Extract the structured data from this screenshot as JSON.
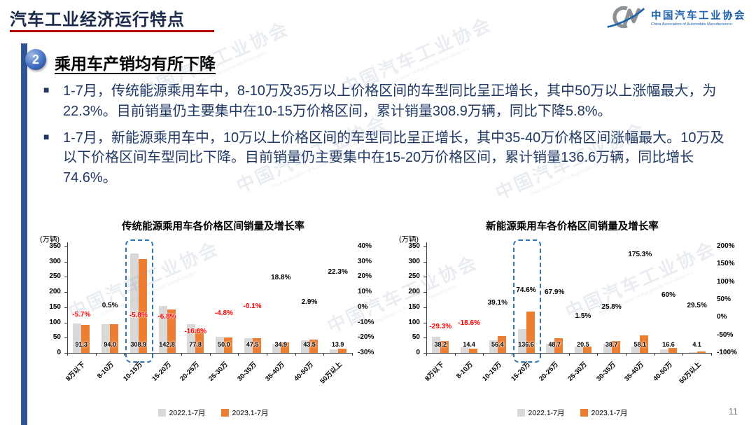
{
  "header": {
    "title": "汽车工业经济运行特点",
    "logo": {
      "org_cn": "中国汽车工业协会",
      "org_en": "China Association of Automobile Manufacturers"
    }
  },
  "section": {
    "number": "2",
    "heading": "乘用车产销均有所下降"
  },
  "bullets": [
    "1-7月，传统能源乘用车中，8-10万及35万以上价格区间的车型同比呈正增长，其中50万以上涨幅最大，为22.3%。目前销量仍主要集中在10-15万价格区间，累计销量308.9万辆，同比下降5.8%。",
    "1-7月，新能源乘用车中，10万以上价格区间的车型同比呈正增长，其中35-40万价格区间涨幅最大。10万及以下价格区间车型同比下降。目前销量仍主要集中在15-20万价格区间，累计销量136.6万辆，同比增长74.6%。"
  ],
  "watermark": {
    "cn": "中国汽车工业协会",
    "en": "China Association of Automobile Manufacturers"
  },
  "page_number": "11",
  "colors": {
    "accent_red": "#B20000",
    "sidebar_blue": "#2F5597",
    "bullet_text": "#1F3864",
    "bar_2022": "#D9D9D9",
    "bar_2023": "#ED7D31",
    "negative_label": "#FF0000",
    "highlight_border": "#2E74B5"
  },
  "chart_data": [
    {
      "type": "bar",
      "title": "传统能源乘用车各价格区间销量及增长率",
      "unit_label": "(万辆)",
      "categories": [
        "8万以下",
        "8-10万",
        "10-15万",
        "15-20万",
        "20-25万",
        "25-30万",
        "30-35万",
        "35-40万",
        "40-50万",
        "50万以上"
      ],
      "series": [
        {
          "name": "2022.1-7月",
          "color": "#D9D9D9",
          "values": [
            96.8,
            93.5,
            327.9,
            153.2,
            93.3,
            52.5,
            47.5,
            29.4,
            42.3,
            11.4
          ]
        },
        {
          "name": "2023.1-7月",
          "color": "#ED7D31",
          "values": [
            91.3,
            94.0,
            308.9,
            142.8,
            77.8,
            50.0,
            47.5,
            34.9,
            43.5,
            13.9
          ]
        }
      ],
      "value_labels": [
        "91.3",
        "94.0",
        "308.9",
        "142.8",
        "77.8",
        "50.0",
        "47.5",
        "34.9",
        "43.5",
        "13.9"
      ],
      "growth": {
        "labels": [
          "-5.7%",
          "0.5%",
          "-5.8%",
          "-6.8%",
          "-16.6%",
          "-4.8%",
          "-0.1%",
          "18.8%",
          "2.9%",
          "22.3%"
        ],
        "values": [
          -5.7,
          0.5,
          -5.8,
          -6.8,
          -16.6,
          -4.8,
          -0.1,
          18.8,
          2.9,
          22.3
        ]
      },
      "y_left": {
        "min": 0,
        "max": 350,
        "ticks": [
          0,
          50,
          100,
          150,
          200,
          250,
          300,
          350
        ]
      },
      "y_right": {
        "min": -30,
        "max": 40,
        "ticks": [
          "40%",
          "30%",
          "20%",
          "10%",
          "0%",
          "-10%",
          "-20%",
          "-30%"
        ],
        "tick_values": [
          40,
          30,
          20,
          10,
          0,
          -10,
          -20,
          -30
        ]
      },
      "highlight_index": 2,
      "legend_position": "bottom",
      "grid": false
    },
    {
      "type": "bar",
      "title": "新能源乘用车各价格区间销量及增长率",
      "unit_label": "(万辆)",
      "categories": [
        "8万以下",
        "8-10万",
        "10-15万",
        "15-20万",
        "20-25万",
        "25-30万",
        "30-35万",
        "35-40万",
        "40-50万",
        "50万以上"
      ],
      "series": [
        {
          "name": "2022.1-7月",
          "color": "#D9D9D9",
          "values": [
            54.0,
            17.7,
            40.5,
            78.2,
            29.0,
            20.2,
            30.8,
            21.1,
            10.4,
            3.2
          ]
        },
        {
          "name": "2023.1-7月",
          "color": "#ED7D31",
          "values": [
            38.2,
            14.4,
            56.4,
            136.6,
            48.7,
            20.5,
            38.7,
            58.1,
            16.6,
            4.1
          ]
        }
      ],
      "value_labels": [
        "38.2",
        "14.4",
        "56.4",
        "136.6",
        "48.7",
        "20.5",
        "38.7",
        "58.1",
        "16.6",
        "4.1"
      ],
      "growth": {
        "labels": [
          "-29.3%",
          "-18.6%",
          "39.1%",
          "74.6%",
          "67.9%",
          "1.5%",
          "25.8%",
          "175.3%",
          "60%",
          "29.5%"
        ],
        "values": [
          -29.3,
          -18.6,
          39.1,
          74.6,
          67.9,
          1.5,
          25.8,
          175.3,
          60,
          29.5
        ]
      },
      "y_left": {
        "min": 0,
        "max": 350,
        "ticks": [
          0,
          50,
          100,
          150,
          200,
          250,
          300,
          350
        ]
      },
      "y_right": {
        "min": -100,
        "max": 200,
        "ticks": [
          "200%",
          "150%",
          "100%",
          "50%",
          "0%",
          "-50%",
          "-100%"
        ],
        "tick_values": [
          200,
          150,
          100,
          50,
          0,
          -50,
          -100
        ]
      },
      "highlight_index": 3,
      "legend_position": "bottom",
      "grid": false
    }
  ]
}
